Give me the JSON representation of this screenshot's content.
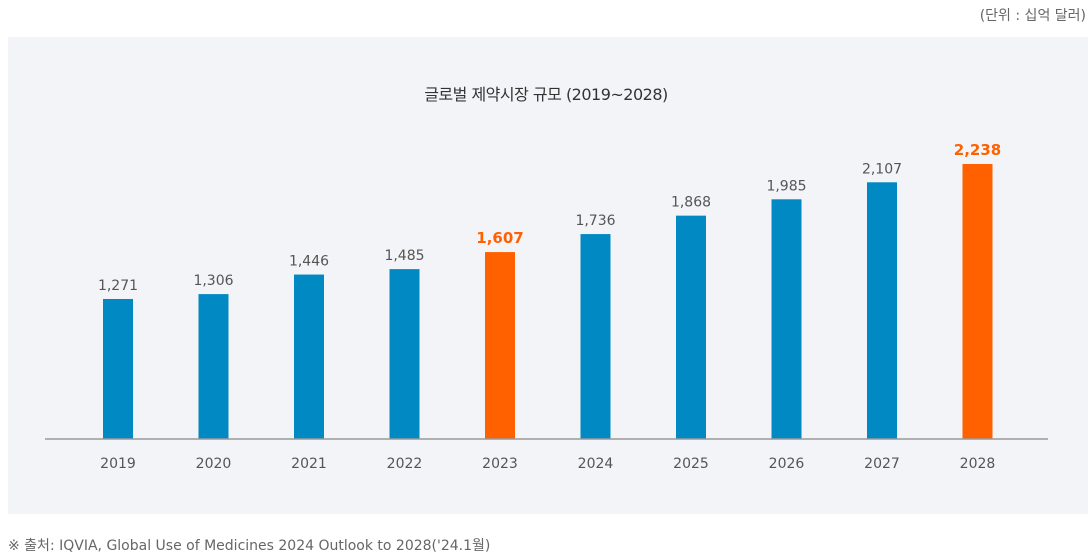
{
  "chart_data": {
    "type": "bar",
    "title": "글로벌 제약시장 규모 (2019~2028)",
    "unit_label": "(단위 : 십억 달러)",
    "categories": [
      "2019",
      "2020",
      "2021",
      "2022",
      "2023",
      "2024",
      "2025",
      "2026",
      "2027",
      "2028"
    ],
    "values": [
      1271,
      1306,
      1446,
      1485,
      1607,
      1736,
      1868,
      1985,
      2107,
      2238
    ],
    "data_labels": [
      "1,271",
      "1,306",
      "1,446",
      "1,485",
      "1,607",
      "1,736",
      "1,868",
      "1,985",
      "2,107",
      "2,238"
    ],
    "highlighted": [
      "2023",
      "2028"
    ],
    "colors": {
      "default": "#0089c2",
      "highlight": "#ff6000",
      "label": "#555555",
      "highlight_label": "#ff6000",
      "axis": "#999999"
    },
    "ylim": [
      268,
      2238
    ],
    "grid": false,
    "xlabel": "",
    "ylabel": ""
  },
  "source": "※ 출처: IQVIA, Global Use of Medicines 2024 Outlook to 2028('24.1월)"
}
